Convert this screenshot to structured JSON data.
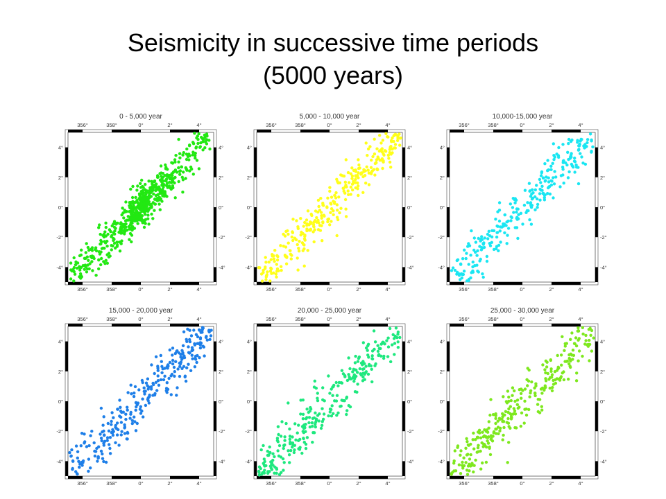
{
  "slide": {
    "title_line1": "Seismicity in successive time periods",
    "title_line2": "(5000 years)"
  },
  "chart_data": [
    {
      "type": "scatter",
      "title": "0 - 5,000 year",
      "color": "#22e812",
      "xlabel": "",
      "ylabel": "",
      "x_ticks": [
        "356°",
        "358°",
        "0°",
        "2°",
        "4°"
      ],
      "y_ticks": [
        "-4°",
        "-2°",
        "0°",
        "2°",
        "4°"
      ],
      "xlim": [
        -5,
        5
      ],
      "ylim": [
        -5,
        5
      ],
      "grid": false,
      "trend": {
        "slope": 1.0,
        "intercept": 0.0,
        "spread": 0.7
      },
      "cluster": {
        "x": 0.2,
        "y": 0.1,
        "count": 260,
        "spread": 0.55
      },
      "point_count": 620
    },
    {
      "type": "scatter",
      "title": "5,000 - 10,000 year",
      "color": "#ffff1a",
      "xlabel": "",
      "ylabel": "",
      "x_ticks": [
        "356°",
        "358°",
        "0°",
        "2°",
        "4°"
      ],
      "y_ticks": [
        "-4°",
        "-2°",
        "0°",
        "2°",
        "4°"
      ],
      "xlim": [
        -5,
        5
      ],
      "ylim": [
        -5,
        5
      ],
      "grid": false,
      "trend": {
        "slope": 1.0,
        "intercept": 0.0,
        "spread": 0.8
      },
      "point_count": 330
    },
    {
      "type": "scatter",
      "title": "10,000-15,000 year",
      "color": "#1ae6f2",
      "xlabel": "",
      "ylabel": "",
      "x_ticks": [
        "356°",
        "358°",
        "0°",
        "2°",
        "4°"
      ],
      "y_ticks": [
        "-4°",
        "-2°",
        "0°",
        "2°",
        "4°"
      ],
      "xlim": [
        -5,
        5
      ],
      "ylim": [
        -5,
        5
      ],
      "grid": false,
      "trend": {
        "slope": 1.0,
        "intercept": 0.0,
        "spread": 0.8
      },
      "point_count": 300
    },
    {
      "type": "scatter",
      "title": "15,000 - 20,000 year",
      "color": "#1e7fe8",
      "xlabel": "",
      "ylabel": "",
      "x_ticks": [
        "356°",
        "358°",
        "0°",
        "2°",
        "4°"
      ],
      "y_ticks": [
        "-4°",
        "-2°",
        "0°",
        "2°",
        "4°"
      ],
      "xlim": [
        -5,
        5
      ],
      "ylim": [
        -5,
        5
      ],
      "grid": false,
      "trend": {
        "slope": 1.0,
        "intercept": 0.0,
        "spread": 0.85
      },
      "point_count": 320
    },
    {
      "type": "scatter",
      "title": "20,000 - 25,000 year",
      "color": "#1ee87e",
      "xlabel": "",
      "ylabel": "",
      "x_ticks": [
        "356°",
        "358°",
        "0°",
        "2°",
        "4°"
      ],
      "y_ticks": [
        "-4°",
        "-2°",
        "0°",
        "2°",
        "4°"
      ],
      "xlim": [
        -5,
        5
      ],
      "ylim": [
        -5,
        5
      ],
      "grid": false,
      "trend": {
        "slope": 1.0,
        "intercept": 0.0,
        "spread": 0.85
      },
      "point_count": 320
    },
    {
      "type": "scatter",
      "title": "25,000 - 30,000 year",
      "color": "#7ee81e",
      "xlabel": "",
      "ylabel": "",
      "x_ticks": [
        "356°",
        "358°",
        "0°",
        "2°",
        "4°"
      ],
      "y_ticks": [
        "-4°",
        "-2°",
        "0°",
        "2°",
        "4°"
      ],
      "xlim": [
        -5,
        5
      ],
      "ylim": [
        -5,
        5
      ],
      "grid": false,
      "trend": {
        "slope": 1.0,
        "intercept": 0.0,
        "spread": 0.85
      },
      "point_count": 320
    }
  ]
}
